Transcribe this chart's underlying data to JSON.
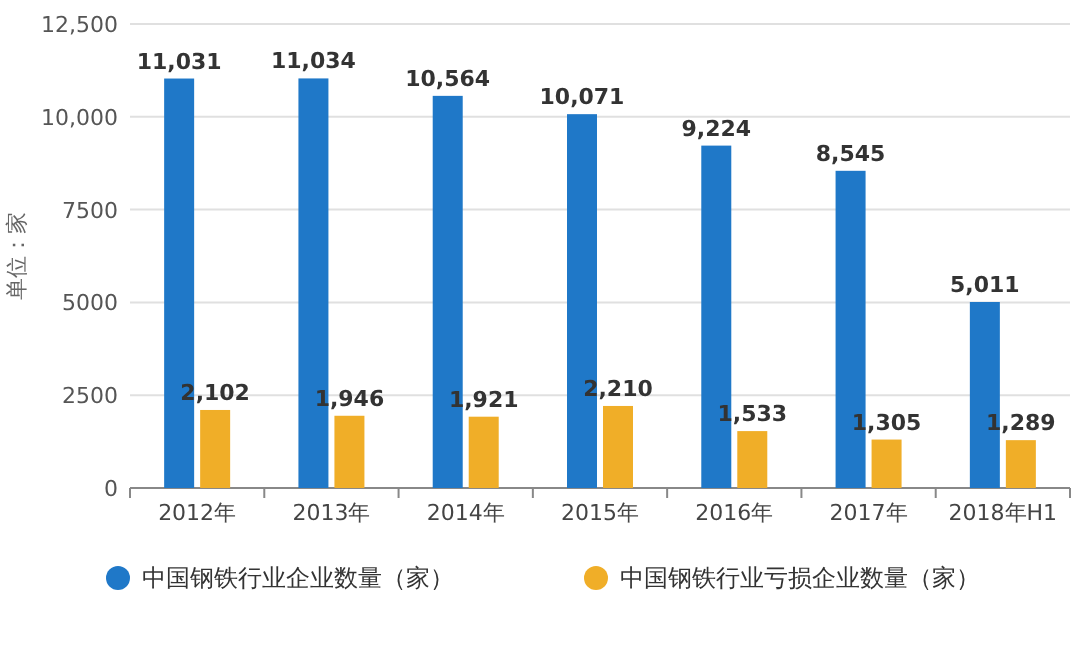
{
  "chart_data": {
    "type": "bar",
    "ylabel": "单位：家",
    "categories": [
      "2012年",
      "2013年",
      "2014年",
      "2015年",
      "2016年",
      "2017年",
      "2018年H1"
    ],
    "series": [
      {
        "name": "中国钢铁行业企业数量（家）",
        "color": "#1f78c8",
        "values": [
          11031,
          11034,
          10564,
          10071,
          9224,
          8545,
          5011
        ],
        "value_labels": [
          "11,031",
          "11,034",
          "10,564",
          "10,071",
          "9,224",
          "8,545",
          "5,011"
        ]
      },
      {
        "name": "中国钢铁行业亏损企业数量（家）",
        "color": "#f0ae28",
        "values": [
          2102,
          1946,
          1921,
          2210,
          1533,
          1305,
          1289
        ],
        "value_labels": [
          "2,102",
          "1,946",
          "1,921",
          "2,210",
          "1,533",
          "1,305",
          "1,289"
        ]
      }
    ],
    "ylim": [
      0,
      12500
    ],
    "yticks": [
      0,
      2500,
      5000,
      7500,
      {
        "value": 10000,
        "label": "10,000"
      },
      {
        "value": 12500,
        "label": "12,500"
      }
    ],
    "grid": "y",
    "legend": "bottom"
  }
}
